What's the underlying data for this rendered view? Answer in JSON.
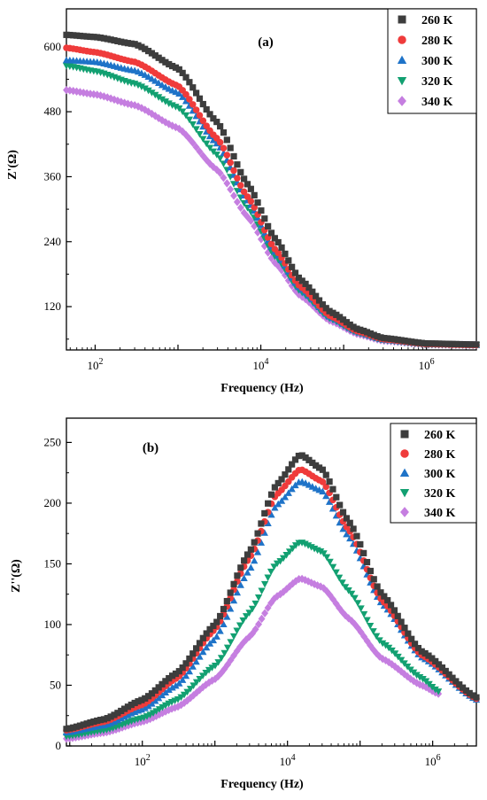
{
  "chart_data": [
    {
      "type": "scatter",
      "panel_label": "(a)",
      "xlabel": "Frequency (Hz)",
      "ylabel": "Z'(Ω)",
      "xscale": "log",
      "xlim": [
        45,
        4000000
      ],
      "ylim": [
        40,
        670
      ],
      "yticks": [
        120,
        240,
        360,
        480,
        600
      ],
      "xticks": [
        100,
        10000,
        1000000
      ],
      "xtick_labels": [
        {
          "base": "10",
          "exp": "2"
        },
        {
          "base": "10",
          "exp": "4"
        },
        {
          "base": "10",
          "exp": "6"
        }
      ],
      "legend": "top-right",
      "series": [
        {
          "name": "260 K",
          "marker": "square",
          "color": "#3d3d3d",
          "x": [
            45,
            100,
            300,
            1000,
            3000,
            7000,
            15000,
            30000,
            70000,
            150000,
            300000,
            1000000,
            4000000
          ],
          "y": [
            622,
            618,
            605,
            560,
            460,
            345,
            245,
            170,
            110,
            78,
            62,
            52,
            50
          ]
        },
        {
          "name": "280 K",
          "marker": "circle",
          "color": "#ef3b3b",
          "x": [
            45,
            100,
            300,
            1000,
            3000,
            7000,
            15000,
            30000,
            70000,
            150000,
            300000,
            1000000,
            4000000
          ],
          "y": [
            598,
            590,
            572,
            528,
            430,
            322,
            225,
            157,
            102,
            74,
            60,
            51,
            49
          ]
        },
        {
          "name": "300 K",
          "marker": "triangle-up",
          "color": "#1e73c8",
          "x": [
            45,
            100,
            300,
            1000,
            3000,
            7000,
            15000,
            30000,
            70000,
            150000,
            300000,
            1000000,
            4000000
          ],
          "y": [
            575,
            572,
            556,
            515,
            420,
            315,
            220,
            153,
            100,
            73,
            59,
            51,
            49
          ]
        },
        {
          "name": "320 K",
          "marker": "triangle-down",
          "color": "#12a071",
          "x": [
            45,
            100,
            300,
            1000,
            3000,
            7000,
            15000,
            30000,
            70000,
            150000,
            300000,
            1000000,
            4000000
          ],
          "y": [
            565,
            555,
            532,
            488,
            400,
            302,
            212,
            148,
            97,
            71,
            58,
            50,
            49
          ]
        },
        {
          "name": "340 K",
          "marker": "diamond",
          "color": "#c57ee0",
          "x": [
            45,
            100,
            300,
            1000,
            3000,
            7000,
            15000,
            30000,
            70000,
            150000,
            300000,
            1000000,
            4000000
          ],
          "y": [
            520,
            512,
            492,
            450,
            372,
            285,
            200,
            140,
            93,
            69,
            57,
            50,
            49
          ]
        }
      ]
    },
    {
      "type": "scatter",
      "panel_label": "(b)",
      "xlabel": "Frequency (Hz)",
      "ylabel": "Z''(Ω)",
      "xscale": "log",
      "xlim": [
        9,
        4000000
      ],
      "ylim": [
        0,
        270
      ],
      "yticks": [
        0,
        50,
        100,
        150,
        200,
        250
      ],
      "xticks": [
        100,
        10000,
        1000000
      ],
      "xtick_labels": [
        {
          "base": "10",
          "exp": "2"
        },
        {
          "base": "10",
          "exp": "4"
        },
        {
          "base": "10",
          "exp": "6"
        }
      ],
      "legend": "top-right",
      "series": [
        {
          "name": "260 K",
          "marker": "square",
          "color": "#3d3d3d",
          "x": [
            9,
            30,
            100,
            300,
            1000,
            3000,
            7000,
            15000,
            30000,
            70000,
            200000,
            700000,
            4000000
          ],
          "y": [
            14,
            22,
            38,
            60,
            100,
            160,
            215,
            240,
            228,
            185,
            125,
            78,
            40
          ]
        },
        {
          "name": "280 K",
          "marker": "circle",
          "color": "#ef3b3b",
          "x": [
            9,
            30,
            100,
            300,
            1000,
            3000,
            7000,
            15000,
            30000,
            70000,
            200000,
            700000,
            4000000
          ],
          "y": [
            13,
            20,
            34,
            56,
            96,
            155,
            207,
            228,
            218,
            178,
            120,
            75,
            39
          ]
        },
        {
          "name": "300 K",
          "marker": "triangle-up",
          "color": "#1e73c8",
          "x": [
            9,
            30,
            100,
            300,
            1000,
            3000,
            7000,
            15000,
            30000,
            70000,
            200000,
            700000,
            4000000
          ],
          "y": [
            11,
            17,
            30,
            50,
            88,
            145,
            198,
            218,
            210,
            172,
            117,
            73,
            38
          ]
        },
        {
          "name": "320 K",
          "marker": "triangle-down",
          "color": "#12a071",
          "x": [
            9,
            30,
            100,
            300,
            1000,
            3000,
            7000,
            15000,
            30000,
            70000,
            200000,
            700000,
            1200000
          ],
          "y": [
            8,
            13,
            23,
            38,
            66,
            110,
            150,
            168,
            160,
            128,
            85,
            56,
            45
          ]
        },
        {
          "name": "340 K",
          "marker": "diamond",
          "color": "#c57ee0",
          "x": [
            9,
            30,
            100,
            300,
            1000,
            3000,
            7000,
            15000,
            30000,
            70000,
            200000,
            700000,
            1200000
          ],
          "y": [
            6,
            11,
            20,
            32,
            55,
            90,
            123,
            138,
            131,
            105,
            72,
            50,
            43
          ]
        }
      ]
    }
  ]
}
